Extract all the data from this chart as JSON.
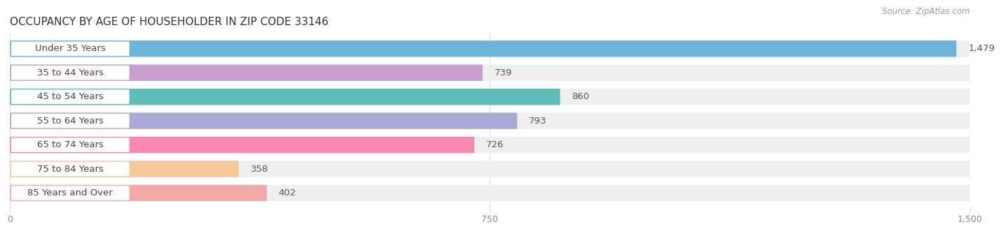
{
  "title": "OCCUPANCY BY AGE OF HOUSEHOLDER IN ZIP CODE 33146",
  "source": "Source: ZipAtlas.com",
  "categories": [
    "Under 35 Years",
    "35 to 44 Years",
    "45 to 54 Years",
    "55 to 64 Years",
    "65 to 74 Years",
    "75 to 84 Years",
    "85 Years and Over"
  ],
  "values": [
    1479,
    739,
    860,
    793,
    726,
    358,
    402
  ],
  "bar_colors": [
    "#6fb3d9",
    "#c4a0cb",
    "#5dbcb5",
    "#aaaad8",
    "#f789b2",
    "#f6c89a",
    "#f0aaa8"
  ],
  "xlim": [
    0,
    1500
  ],
  "xticks": [
    0,
    750,
    1500
  ],
  "bg_color": "#ffffff",
  "bar_bg_color": "#efefef",
  "title_fontsize": 11,
  "source_fontsize": 8.5,
  "label_fontsize": 9.5,
  "value_fontsize": 9.5,
  "bar_height": 0.68,
  "n_bars": 7
}
